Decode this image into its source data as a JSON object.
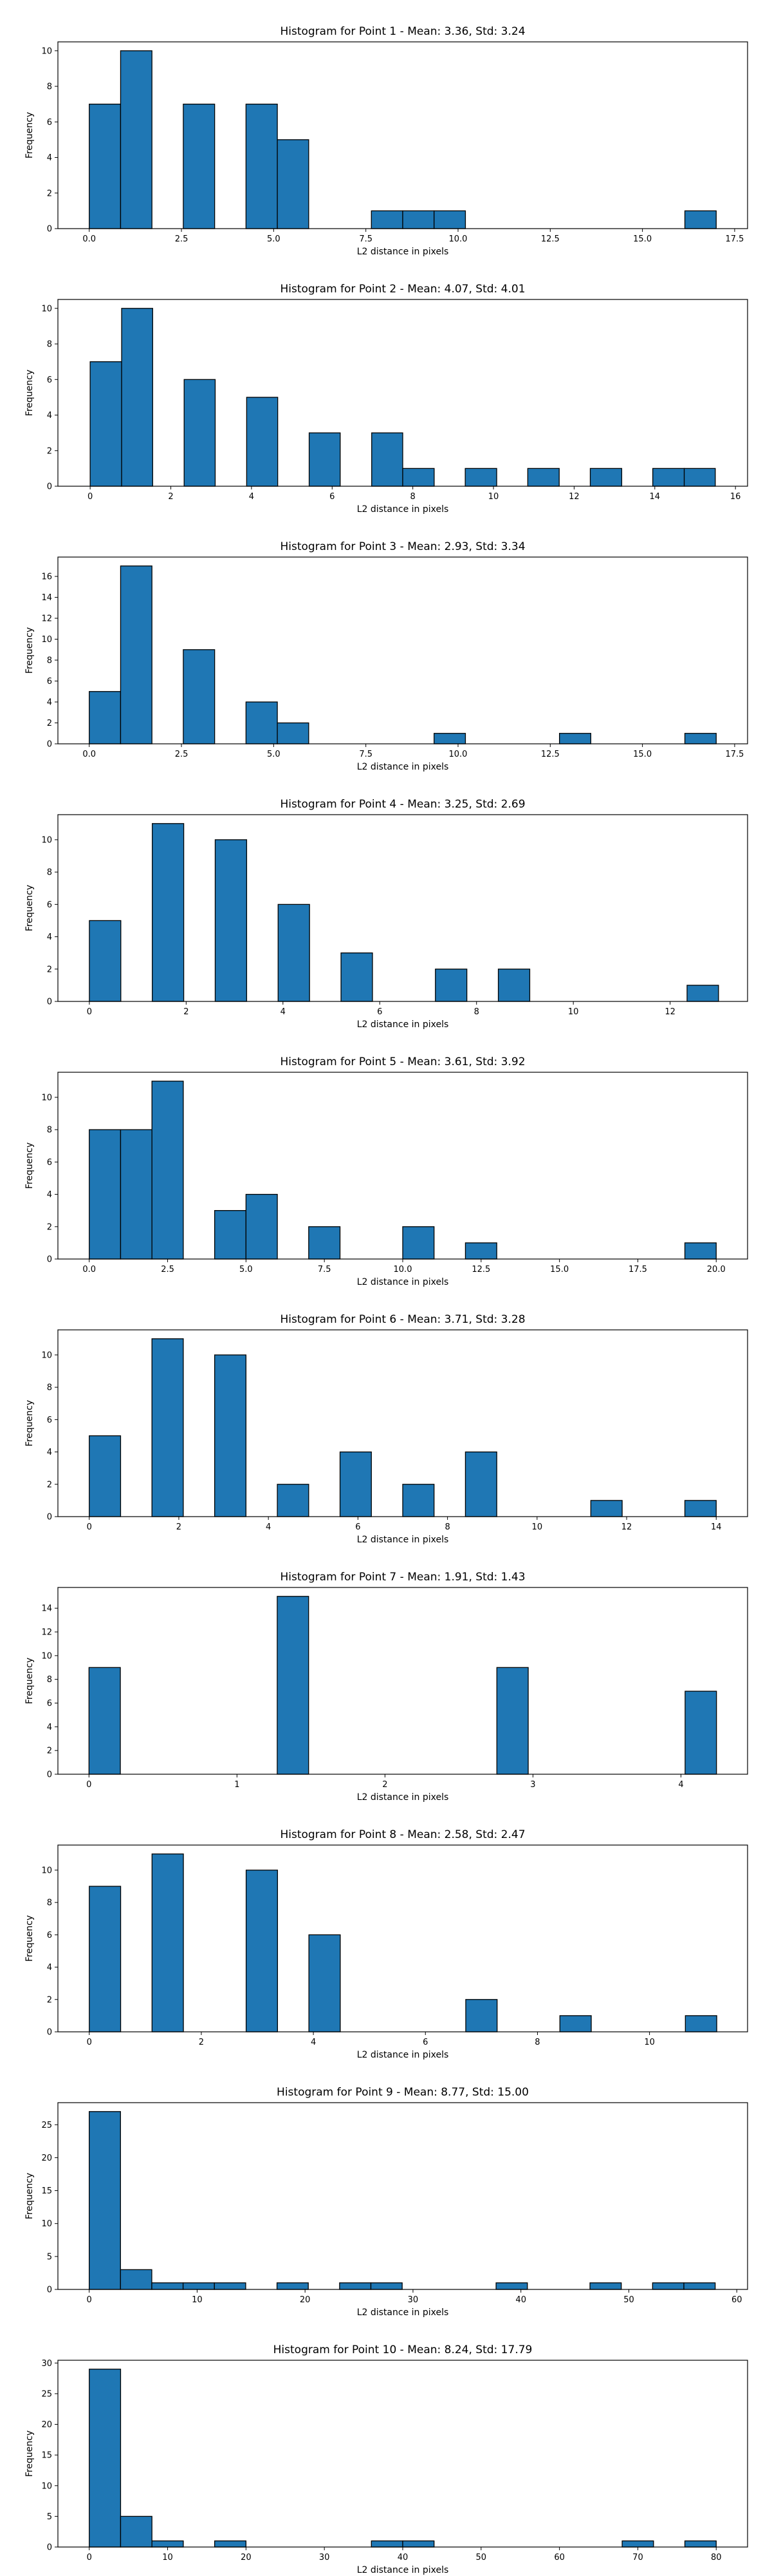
{
  "chart_data": [
    {
      "type": "bar",
      "title": "Histogram for Point 1 - Mean: 3.36, Std: 3.24",
      "xlabel": "L2 distance in pixels",
      "ylabel": "Frequency",
      "xlim": [
        -0.85,
        17.85
      ],
      "ylim": [
        0,
        10.5
      ],
      "xticks": [
        0.0,
        2.5,
        5.0,
        7.5,
        10.0,
        12.5,
        15.0,
        17.5
      ],
      "xtick_labels": [
        "0.0",
        "2.5",
        "5.0",
        "7.5",
        "10.0",
        "12.5",
        "15.0",
        "17.5"
      ],
      "yticks": [
        0,
        2,
        4,
        6,
        8,
        10
      ],
      "ytick_labels": [
        "0",
        "2",
        "4",
        "6",
        "8",
        "10"
      ],
      "bins": [
        [
          0.0,
          0.85,
          7
        ],
        [
          0.85,
          1.7,
          10
        ],
        [
          2.55,
          3.4,
          7
        ],
        [
          4.25,
          5.1,
          7
        ],
        [
          5.1,
          5.95,
          5
        ],
        [
          7.65,
          8.5,
          1
        ],
        [
          8.5,
          9.35,
          1
        ],
        [
          9.35,
          10.2,
          1
        ],
        [
          16.15,
          17.0,
          1
        ]
      ]
    },
    {
      "type": "bar",
      "title": "Histogram for Point 2 - Mean: 4.07, Std: 4.01",
      "xlabel": "L2 distance in pixels",
      "ylabel": "Frequency",
      "xlim": [
        -0.8,
        16.3
      ],
      "ylim": [
        0,
        10.5
      ],
      "xticks": [
        0,
        2,
        4,
        6,
        8,
        10,
        12,
        14,
        16
      ],
      "xtick_labels": [
        "0",
        "2",
        "4",
        "6",
        "8",
        "10",
        "12",
        "14",
        "16"
      ],
      "yticks": [
        0,
        2,
        4,
        6,
        8,
        10
      ],
      "ytick_labels": [
        "0",
        "2",
        "4",
        "6",
        "8",
        "10"
      ],
      "bins": [
        [
          0.0,
          0.78,
          7
        ],
        [
          0.78,
          1.55,
          10
        ],
        [
          2.33,
          3.1,
          6
        ],
        [
          3.88,
          4.65,
          5
        ],
        [
          5.43,
          6.2,
          3
        ],
        [
          6.98,
          7.75,
          3
        ],
        [
          7.75,
          8.53,
          1
        ],
        [
          9.3,
          10.08,
          1
        ],
        [
          10.85,
          11.63,
          1
        ],
        [
          12.4,
          13.18,
          1
        ],
        [
          13.95,
          14.73,
          1
        ],
        [
          14.73,
          15.5,
          1
        ]
      ]
    },
    {
      "type": "bar",
      "title": "Histogram for Point 3 - Mean: 2.93, Std: 3.34",
      "xlabel": "L2 distance in pixels",
      "ylabel": "Frequency",
      "xlim": [
        -0.85,
        17.85
      ],
      "ylim": [
        0,
        17.85
      ],
      "xticks": [
        0.0,
        2.5,
        5.0,
        7.5,
        10.0,
        12.5,
        15.0,
        17.5
      ],
      "xtick_labels": [
        "0.0",
        "2.5",
        "5.0",
        "7.5",
        "10.0",
        "12.5",
        "15.0",
        "17.5"
      ],
      "yticks": [
        0,
        2,
        4,
        6,
        8,
        10,
        12,
        14,
        16
      ],
      "ytick_labels": [
        "0",
        "2",
        "4",
        "6",
        "8",
        "10",
        "12",
        "14",
        "16"
      ],
      "bins": [
        [
          0.0,
          0.85,
          5
        ],
        [
          0.85,
          1.7,
          17
        ],
        [
          2.55,
          3.4,
          9
        ],
        [
          4.25,
          5.1,
          4
        ],
        [
          5.1,
          5.95,
          2
        ],
        [
          9.35,
          10.2,
          1
        ],
        [
          12.75,
          13.6,
          1
        ],
        [
          16.15,
          17.0,
          1
        ]
      ]
    },
    {
      "type": "bar",
      "title": "Histogram for Point 4 - Mean: 3.25, Std: 2.69",
      "xlabel": "L2 distance in pixels",
      "ylabel": "Frequency",
      "xlim": [
        -0.65,
        13.6
      ],
      "ylim": [
        0,
        11.55
      ],
      "xticks": [
        0,
        2,
        4,
        6,
        8,
        10,
        12
      ],
      "xtick_labels": [
        "0",
        "2",
        "4",
        "6",
        "8",
        "10",
        "12"
      ],
      "yticks": [
        0,
        2,
        4,
        6,
        8,
        10
      ],
      "ytick_labels": [
        "0",
        "2",
        "4",
        "6",
        "8",
        "10"
      ],
      "bins": [
        [
          0.0,
          0.65,
          5
        ],
        [
          1.3,
          1.95,
          11
        ],
        [
          2.6,
          3.25,
          10
        ],
        [
          3.9,
          4.55,
          6
        ],
        [
          5.2,
          5.85,
          3
        ],
        [
          7.15,
          7.8,
          2
        ],
        [
          8.45,
          9.1,
          2
        ],
        [
          12.35,
          13.0,
          1
        ]
      ]
    },
    {
      "type": "bar",
      "title": "Histogram for Point 5 - Mean: 3.61, Std: 3.92",
      "xlabel": "L2 distance in pixels",
      "ylabel": "Frequency",
      "xlim": [
        -1.0,
        21.0
      ],
      "ylim": [
        0,
        11.55
      ],
      "xticks": [
        0.0,
        2.5,
        5.0,
        7.5,
        10.0,
        12.5,
        15.0,
        17.5,
        20.0
      ],
      "xtick_labels": [
        "0.0",
        "2.5",
        "5.0",
        "7.5",
        "10.0",
        "12.5",
        "15.0",
        "17.5",
        "20.0"
      ],
      "yticks": [
        0,
        2,
        4,
        6,
        8,
        10
      ],
      "ytick_labels": [
        "0",
        "2",
        "4",
        "6",
        "8",
        "10"
      ],
      "bins": [
        [
          0.0,
          1.0,
          8
        ],
        [
          1.0,
          2.0,
          8
        ],
        [
          2.0,
          3.0,
          11
        ],
        [
          4.0,
          5.0,
          3
        ],
        [
          5.0,
          6.0,
          4
        ],
        [
          7.0,
          8.0,
          2
        ],
        [
          10.0,
          11.0,
          2
        ],
        [
          12.0,
          13.0,
          1
        ],
        [
          19.0,
          20.0,
          1
        ]
      ]
    },
    {
      "type": "bar",
      "title": "Histogram for Point 6 - Mean: 3.71, Std: 3.28",
      "xlabel": "L2 distance in pixels",
      "ylabel": "Frequency",
      "xlim": [
        -0.7,
        14.7
      ],
      "ylim": [
        0,
        11.55
      ],
      "xticks": [
        0,
        2,
        4,
        6,
        8,
        10,
        12,
        14
      ],
      "xtick_labels": [
        "0",
        "2",
        "4",
        "6",
        "8",
        "10",
        "12",
        "14"
      ],
      "yticks": [
        0,
        2,
        4,
        6,
        8,
        10
      ],
      "ytick_labels": [
        "0",
        "2",
        "4",
        "6",
        "8",
        "10"
      ],
      "bins": [
        [
          0.0,
          0.7,
          5
        ],
        [
          1.4,
          2.1,
          11
        ],
        [
          2.8,
          3.5,
          10
        ],
        [
          4.2,
          4.9,
          2
        ],
        [
          5.6,
          6.3,
          4
        ],
        [
          7.0,
          7.7,
          2
        ],
        [
          8.4,
          9.1,
          4
        ],
        [
          11.2,
          11.9,
          1
        ],
        [
          13.3,
          14.0,
          1
        ]
      ]
    },
    {
      "type": "bar",
      "title": "Histogram for Point 7 - Mean: 1.91, Std: 1.43",
      "xlabel": "L2 distance in pixels",
      "ylabel": "Frequency",
      "xlim": [
        -0.21,
        4.45
      ],
      "ylim": [
        0,
        15.75
      ],
      "xticks": [
        0,
        1,
        2,
        3,
        4
      ],
      "xtick_labels": [
        "0",
        "1",
        "2",
        "3",
        "4"
      ],
      "yticks": [
        0,
        2,
        4,
        6,
        8,
        10,
        12,
        14
      ],
      "ytick_labels": [
        "0",
        "2",
        "4",
        "6",
        "8",
        "10",
        "12",
        "14"
      ],
      "bins": [
        [
          0.0,
          0.212,
          9
        ],
        [
          1.272,
          1.484,
          15
        ],
        [
          2.756,
          2.968,
          9
        ],
        [
          4.028,
          4.24,
          7
        ]
      ]
    },
    {
      "type": "bar",
      "title": "Histogram for Point 8 - Mean: 2.58, Std: 2.47",
      "xlabel": "L2 distance in pixels",
      "ylabel": "Frequency",
      "xlim": [
        -0.56,
        11.75
      ],
      "ylim": [
        0,
        11.55
      ],
      "xticks": [
        0,
        2,
        4,
        6,
        8,
        10
      ],
      "xtick_labels": [
        "0",
        "2",
        "4",
        "6",
        "8",
        "10"
      ],
      "yticks": [
        0,
        2,
        4,
        6,
        8,
        10
      ],
      "ytick_labels": [
        "0",
        "2",
        "4",
        "6",
        "8",
        "10"
      ],
      "bins": [
        [
          0.0,
          0.56,
          9
        ],
        [
          1.12,
          1.68,
          11
        ],
        [
          2.8,
          3.36,
          10
        ],
        [
          3.92,
          4.48,
          6
        ],
        [
          6.72,
          7.28,
          2
        ],
        [
          8.4,
          8.96,
          1
        ],
        [
          10.64,
          11.2,
          1
        ]
      ]
    },
    {
      "type": "bar",
      "title": "Histogram for Point 9 - Mean: 8.77, Std: 15.00",
      "xlabel": "L2 distance in pixels",
      "ylabel": "Frequency",
      "xlim": [
        -2.9,
        61.0
      ],
      "ylim": [
        0,
        28.35
      ],
      "xticks": [
        0,
        10,
        20,
        30,
        40,
        50,
        60
      ],
      "xtick_labels": [
        "0",
        "10",
        "20",
        "30",
        "40",
        "50",
        "60"
      ],
      "yticks": [
        0,
        5,
        10,
        15,
        20,
        25
      ],
      "ytick_labels": [
        "0",
        "5",
        "10",
        "15",
        "20",
        "25"
      ],
      "bins": [
        [
          0.0,
          2.9,
          27
        ],
        [
          2.9,
          5.8,
          3
        ],
        [
          5.8,
          8.7,
          1
        ],
        [
          8.7,
          11.6,
          1
        ],
        [
          11.6,
          14.5,
          1
        ],
        [
          17.4,
          20.3,
          1
        ],
        [
          23.2,
          26.1,
          1
        ],
        [
          26.1,
          29.0,
          1
        ],
        [
          37.7,
          40.6,
          1
        ],
        [
          46.4,
          49.3,
          1
        ],
        [
          52.2,
          55.1,
          1
        ],
        [
          55.1,
          58.0,
          1
        ]
      ]
    },
    {
      "type": "bar",
      "title": "Histogram for Point 10 - Mean: 8.24, Std: 17.79",
      "xlabel": "L2 distance in pixels",
      "ylabel": "Frequency",
      "xlim": [
        -4.0,
        84.0
      ],
      "ylim": [
        0,
        30.45
      ],
      "xticks": [
        0,
        10,
        20,
        30,
        40,
        50,
        60,
        70,
        80
      ],
      "xtick_labels": [
        "0",
        "10",
        "20",
        "30",
        "40",
        "50",
        "60",
        "70",
        "80"
      ],
      "yticks": [
        0,
        5,
        10,
        15,
        20,
        25,
        30
      ],
      "ytick_labels": [
        "0",
        "5",
        "10",
        "15",
        "20",
        "25",
        "30"
      ],
      "bins": [
        [
          0.0,
          4.0,
          29
        ],
        [
          4.0,
          8.0,
          5
        ],
        [
          8.0,
          12.0,
          1
        ],
        [
          16.0,
          20.0,
          1
        ],
        [
          36.0,
          40.0,
          1
        ],
        [
          40.0,
          44.0,
          1
        ],
        [
          68.0,
          72.0,
          1
        ],
        [
          76.0,
          80.0,
          1
        ]
      ]
    }
  ]
}
